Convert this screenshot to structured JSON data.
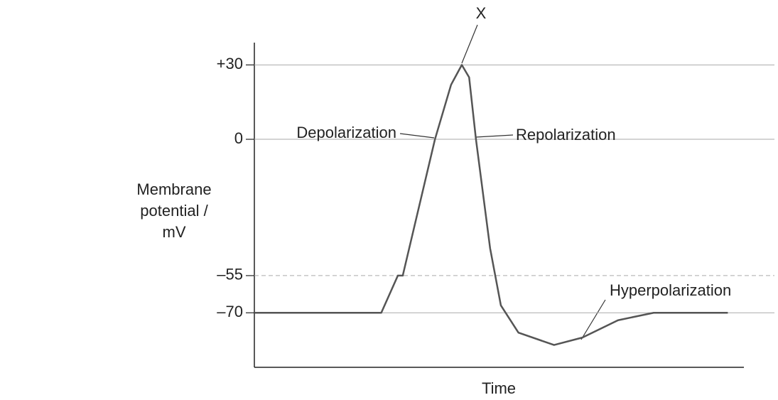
{
  "chart_data": {
    "type": "line",
    "title": null,
    "xlabel": "Time",
    "ylabel": "Membrane potential / mV",
    "x": [
      0,
      26,
      29.4,
      30.4,
      37,
      40.3,
      42.5,
      44,
      45.4,
      48.3,
      50.5,
      54.1,
      61.4,
      67.2,
      74.5,
      81.8,
      97
    ],
    "series": [
      {
        "name": null,
        "color": "#555555",
        "values": [
          -70,
          -70,
          -55,
          -55,
          0,
          22,
          30,
          25,
          0,
          -44,
          -67,
          -78,
          -83,
          -80,
          -73,
          -70,
          -70
        ]
      }
    ],
    "xlim": [
      0,
      100
    ],
    "ylim": [
      -92,
      39
    ],
    "yticks": [
      {
        "value": 30,
        "label": "+30"
      },
      0,
      {
        "value": -55,
        "label": "–55"
      },
      {
        "value": -70,
        "label": "–70"
      }
    ],
    "grid": true,
    "grid_styles": [
      "solid",
      "solid",
      "dashed",
      "solid"
    ],
    "annotations": [
      "X",
      "Depolarization",
      "Repolarization",
      "Hyperpolarization"
    ]
  }
}
